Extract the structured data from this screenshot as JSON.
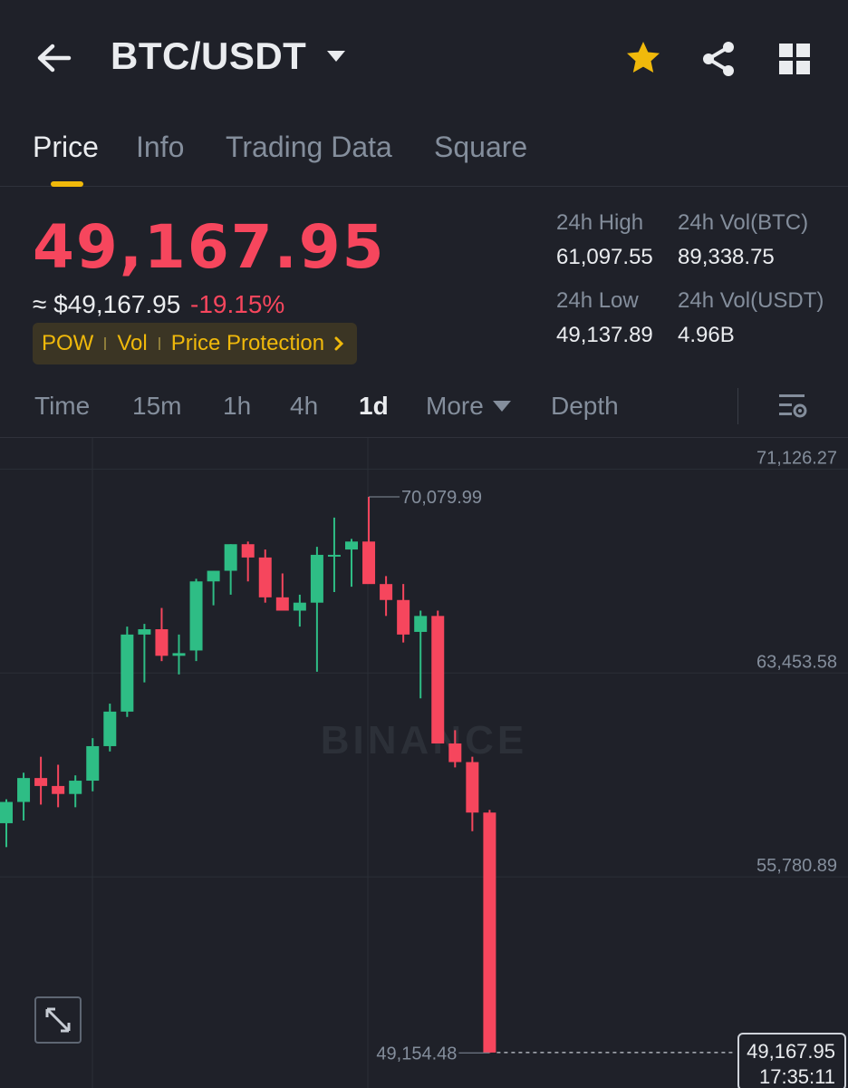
{
  "header": {
    "pair": "BTC/USDT",
    "icons": [
      "back-arrow-icon",
      "caret-down-icon",
      "star-icon",
      "share-icon",
      "grid-icon"
    ],
    "star_color": "#f0b90b"
  },
  "tabs": [
    {
      "label": "Price",
      "active": true
    },
    {
      "label": "Info",
      "active": false
    },
    {
      "label": "Trading Data",
      "active": false
    },
    {
      "label": "Square",
      "active": false
    }
  ],
  "price": {
    "last": "49,167.95",
    "usd": "≈ $49,167.95",
    "change": "-19.15%",
    "color_down": "#f6465d",
    "color_up": "#2ebd85"
  },
  "tags": [
    "POW",
    "Vol",
    "Price Protection"
  ],
  "stats": {
    "high_label": "24h High",
    "high_value": "61,097.55",
    "vol_btc_label": "24h Vol(BTC)",
    "vol_btc_value": "89,338.75",
    "low_label": "24h Low",
    "low_value": "49,137.89",
    "vol_usdt_label": "24h Vol(USDT)",
    "vol_usdt_value": "4.96B"
  },
  "intervals": [
    {
      "label": "Time",
      "active": false
    },
    {
      "label": "15m",
      "active": false
    },
    {
      "label": "1h",
      "active": false
    },
    {
      "label": "4h",
      "active": false
    },
    {
      "label": "1d",
      "active": true
    },
    {
      "label": "More",
      "active": false
    },
    {
      "label": "Depth",
      "active": false
    }
  ],
  "chart_data": {
    "type": "candlestick",
    "interval": "1d",
    "watermark": "BINANCE",
    "y_ticks": [
      "71,126.27",
      "63,453.58",
      "55,780.89",
      "49,167.95"
    ],
    "y_tick_values": [
      71126.27,
      63453.58,
      55780.89
    ],
    "ylim": [
      47800,
      72300
    ],
    "grid": true,
    "max_label": "70,079.99",
    "min_label": "49,154.48",
    "last_price": "49,167.95",
    "last_time": "17:35:11",
    "candles": [
      {
        "o": 57800,
        "h": 58700,
        "l": 56900,
        "c": 58600
      },
      {
        "o": 58600,
        "h": 59700,
        "l": 57900,
        "c": 59500
      },
      {
        "o": 59500,
        "h": 60300,
        "l": 58500,
        "c": 59200
      },
      {
        "o": 59200,
        "h": 60000,
        "l": 58400,
        "c": 58900
      },
      {
        "o": 58900,
        "h": 59600,
        "l": 58400,
        "c": 59400
      },
      {
        "o": 59400,
        "h": 61000,
        "l": 59000,
        "c": 60700
      },
      {
        "o": 60700,
        "h": 62300,
        "l": 60500,
        "c": 62000
      },
      {
        "o": 62000,
        "h": 65200,
        "l": 61800,
        "c": 64900
      },
      {
        "o": 64900,
        "h": 65300,
        "l": 63100,
        "c": 65100
      },
      {
        "o": 65100,
        "h": 65900,
        "l": 63900,
        "c": 64100
      },
      {
        "o": 64100,
        "h": 64900,
        "l": 63400,
        "c": 64200
      },
      {
        "o": 64300,
        "h": 67000,
        "l": 63900,
        "c": 66900
      },
      {
        "o": 66900,
        "h": 67300,
        "l": 66000,
        "c": 67300
      },
      {
        "o": 67300,
        "h": 68300,
        "l": 66400,
        "c": 68300
      },
      {
        "o": 68300,
        "h": 68400,
        "l": 66900,
        "c": 67800
      },
      {
        "o": 67800,
        "h": 68100,
        "l": 66100,
        "c": 66300
      },
      {
        "o": 66300,
        "h": 67200,
        "l": 65900,
        "c": 65800
      },
      {
        "o": 65800,
        "h": 66400,
        "l": 65200,
        "c": 66100
      },
      {
        "o": 66100,
        "h": 68200,
        "l": 63500,
        "c": 67900
      },
      {
        "o": 67900,
        "h": 69300,
        "l": 66500,
        "c": 67900
      },
      {
        "o": 68100,
        "h": 68500,
        "l": 66700,
        "c": 68400
      },
      {
        "o": 68400,
        "h": 70080,
        "l": 67000,
        "c": 66800
      },
      {
        "o": 66800,
        "h": 67100,
        "l": 65600,
        "c": 66200
      },
      {
        "o": 66200,
        "h": 66800,
        "l": 64600,
        "c": 64900
      },
      {
        "o": 65000,
        "h": 65800,
        "l": 62500,
        "c": 65600
      },
      {
        "o": 65600,
        "h": 65800,
        "l": 60800,
        "c": 60800
      },
      {
        "o": 60800,
        "h": 61300,
        "l": 59900,
        "c": 60100
      },
      {
        "o": 60100,
        "h": 60300,
        "l": 57500,
        "c": 58200
      },
      {
        "o": 58200,
        "h": 58300,
        "l": 49154.48,
        "c": 49167.95
      }
    ]
  }
}
